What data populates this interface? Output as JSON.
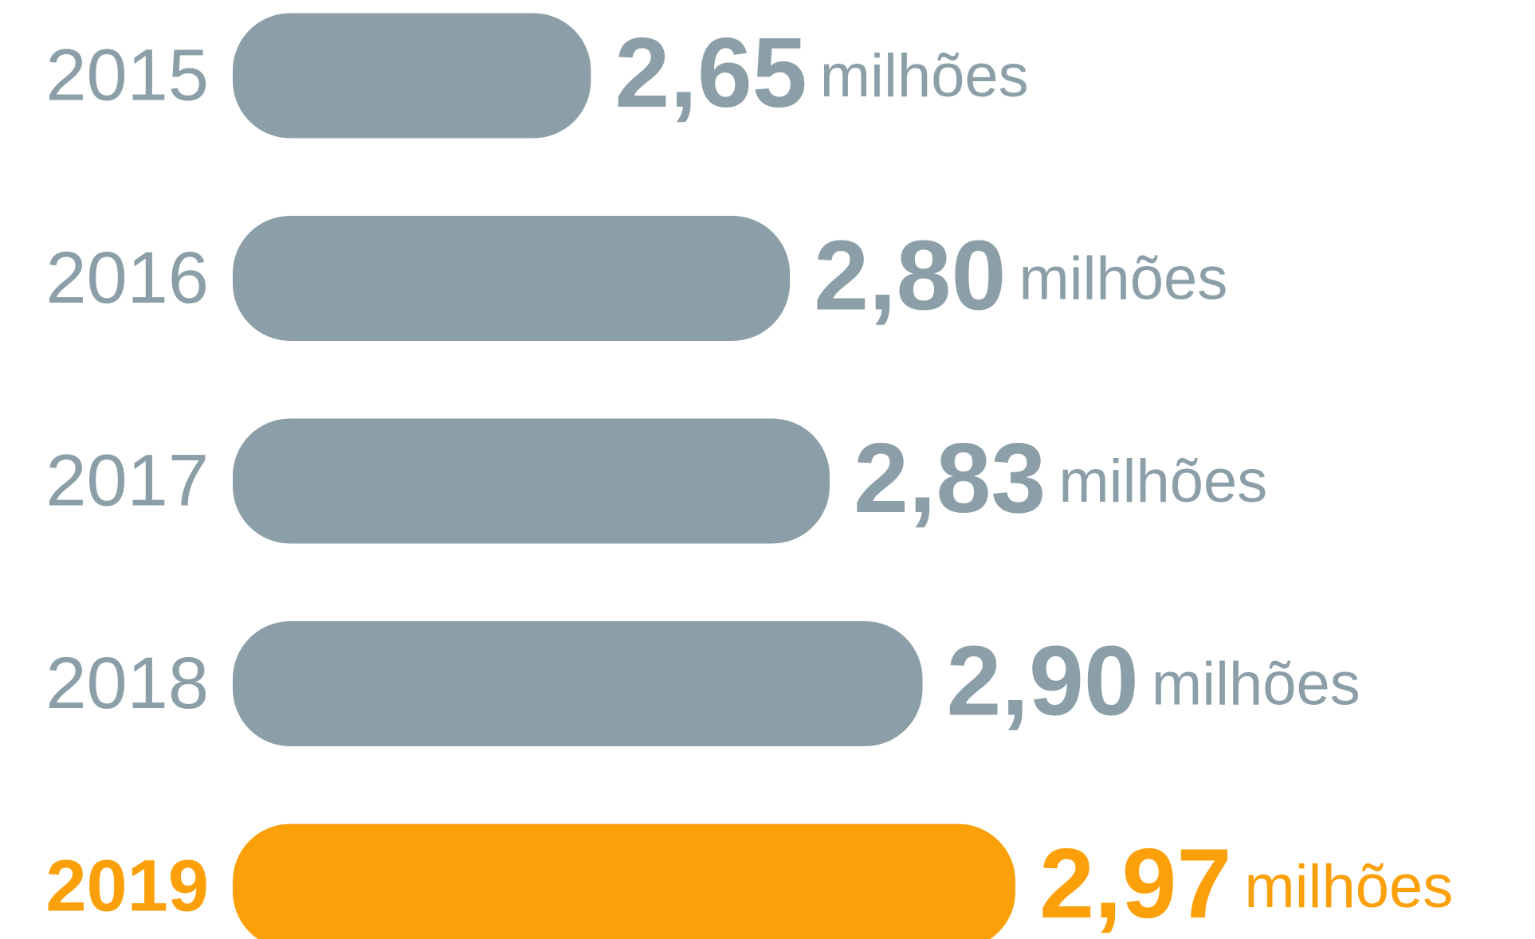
{
  "chart_data": {
    "type": "hbar",
    "categories": [
      "2015",
      "2016",
      "2017",
      "2018",
      "2019"
    ],
    "values": [
      2.65,
      2.8,
      2.83,
      2.9,
      2.97
    ],
    "value_labels": [
      "2,65",
      "2,80",
      "2,83",
      "2,90",
      "2,97"
    ],
    "unit": "milhões",
    "colors": [
      "#8c9fa8",
      "#8c9fa8",
      "#8c9fa8",
      "#8c9fa8",
      "#fca00a"
    ],
    "xlim": [
      2.38,
      3.0
    ]
  }
}
